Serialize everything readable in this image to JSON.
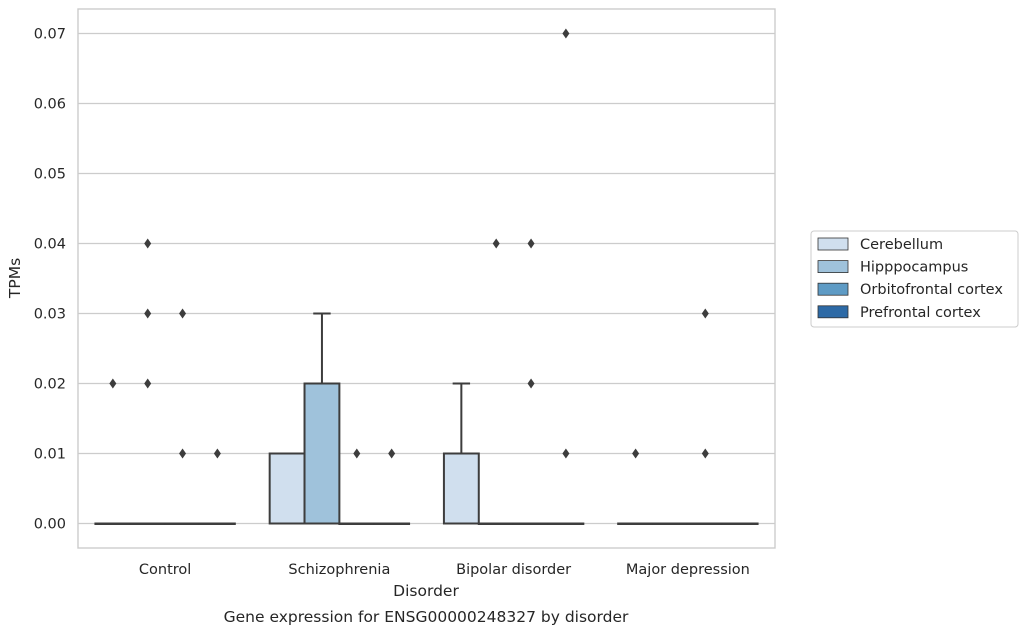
{
  "chart_data": {
    "type": "box",
    "title": "",
    "caption": "Gene expression for ENSG00000248327 by disorder",
    "xlabel": "Disorder",
    "ylabel": "TPMs",
    "ylim": [
      -0.0035,
      0.0735
    ],
    "yticks": [
      "0.00",
      "0.01",
      "0.02",
      "0.03",
      "0.04",
      "0.05",
      "0.06",
      "0.07"
    ],
    "ytick_values": [
      0,
      0.01,
      0.02,
      0.03,
      0.04,
      0.05,
      0.06,
      0.07
    ],
    "grid": "horizontal",
    "legend_position": "right",
    "categories": [
      "Control",
      "Schizophrenia",
      "Bipolar disorder",
      "Major depression"
    ],
    "series": [
      {
        "name": "Cerebellum",
        "color": "#d0dfee",
        "boxes": [
          {
            "category": "Control",
            "q1": 0,
            "median": 0,
            "q3": 0,
            "whisker_low": 0,
            "whisker_high": 0,
            "outliers": [
              0.02
            ]
          },
          {
            "category": "Schizophrenia",
            "q1": 0,
            "median": 0,
            "q3": 0.01,
            "whisker_low": 0,
            "whisker_high": 0.01,
            "outliers": []
          },
          {
            "category": "Bipolar disorder",
            "q1": 0,
            "median": 0,
            "q3": 0.01,
            "whisker_low": 0,
            "whisker_high": 0.02,
            "outliers": []
          },
          {
            "category": "Major depression",
            "q1": 0,
            "median": 0,
            "q3": 0,
            "whisker_low": 0,
            "whisker_high": 0,
            "outliers": [
              0.01
            ]
          }
        ]
      },
      {
        "name": "Hipppocampus",
        "color": "#9fc2db",
        "boxes": [
          {
            "category": "Control",
            "q1": 0,
            "median": 0,
            "q3": 0,
            "whisker_low": 0,
            "whisker_high": 0,
            "outliers": [
              0.04,
              0.03,
              0.02
            ]
          },
          {
            "category": "Schizophrenia",
            "q1": 0,
            "median": 0,
            "q3": 0.02,
            "whisker_low": 0,
            "whisker_high": 0.03,
            "outliers": []
          },
          {
            "category": "Bipolar disorder",
            "q1": 0,
            "median": 0,
            "q3": 0,
            "whisker_low": 0,
            "whisker_high": 0,
            "outliers": [
              0.04
            ]
          },
          {
            "category": "Major depression",
            "q1": 0,
            "median": 0,
            "q3": 0,
            "whisker_low": 0,
            "whisker_high": 0,
            "outliers": []
          }
        ]
      },
      {
        "name": "Orbitofrontal cortex",
        "color": "#5e9bc5",
        "boxes": [
          {
            "category": "Control",
            "q1": 0,
            "median": 0,
            "q3": 0,
            "whisker_low": 0,
            "whisker_high": 0,
            "outliers": [
              0.03,
              0.01
            ]
          },
          {
            "category": "Schizophrenia",
            "q1": 0,
            "median": 0,
            "q3": 0,
            "whisker_low": 0,
            "whisker_high": 0,
            "outliers": [
              0.01
            ]
          },
          {
            "category": "Bipolar disorder",
            "q1": 0,
            "median": 0,
            "q3": 0,
            "whisker_low": 0,
            "whisker_high": 0,
            "outliers": [
              0.04,
              0.02
            ]
          },
          {
            "category": "Major depression",
            "q1": 0,
            "median": 0,
            "q3": 0,
            "whisker_low": 0,
            "whisker_high": 0,
            "outliers": [
              0.03,
              0.01
            ]
          }
        ]
      },
      {
        "name": "Prefrontal cortex",
        "color": "#2d6aa6",
        "boxes": [
          {
            "category": "Control",
            "q1": 0,
            "median": 0,
            "q3": 0,
            "whisker_low": 0,
            "whisker_high": 0,
            "outliers": [
              0.01
            ]
          },
          {
            "category": "Schizophrenia",
            "q1": 0,
            "median": 0,
            "q3": 0,
            "whisker_low": 0,
            "whisker_high": 0,
            "outliers": [
              0.01
            ]
          },
          {
            "category": "Bipolar disorder",
            "q1": 0,
            "median": 0,
            "q3": 0,
            "whisker_low": 0,
            "whisker_high": 0,
            "outliers": [
              0.07,
              0.01
            ]
          },
          {
            "category": "Major depression",
            "q1": 0,
            "median": 0,
            "q3": 0,
            "whisker_low": 0,
            "whisker_high": 0,
            "outliers": []
          }
        ]
      }
    ]
  }
}
